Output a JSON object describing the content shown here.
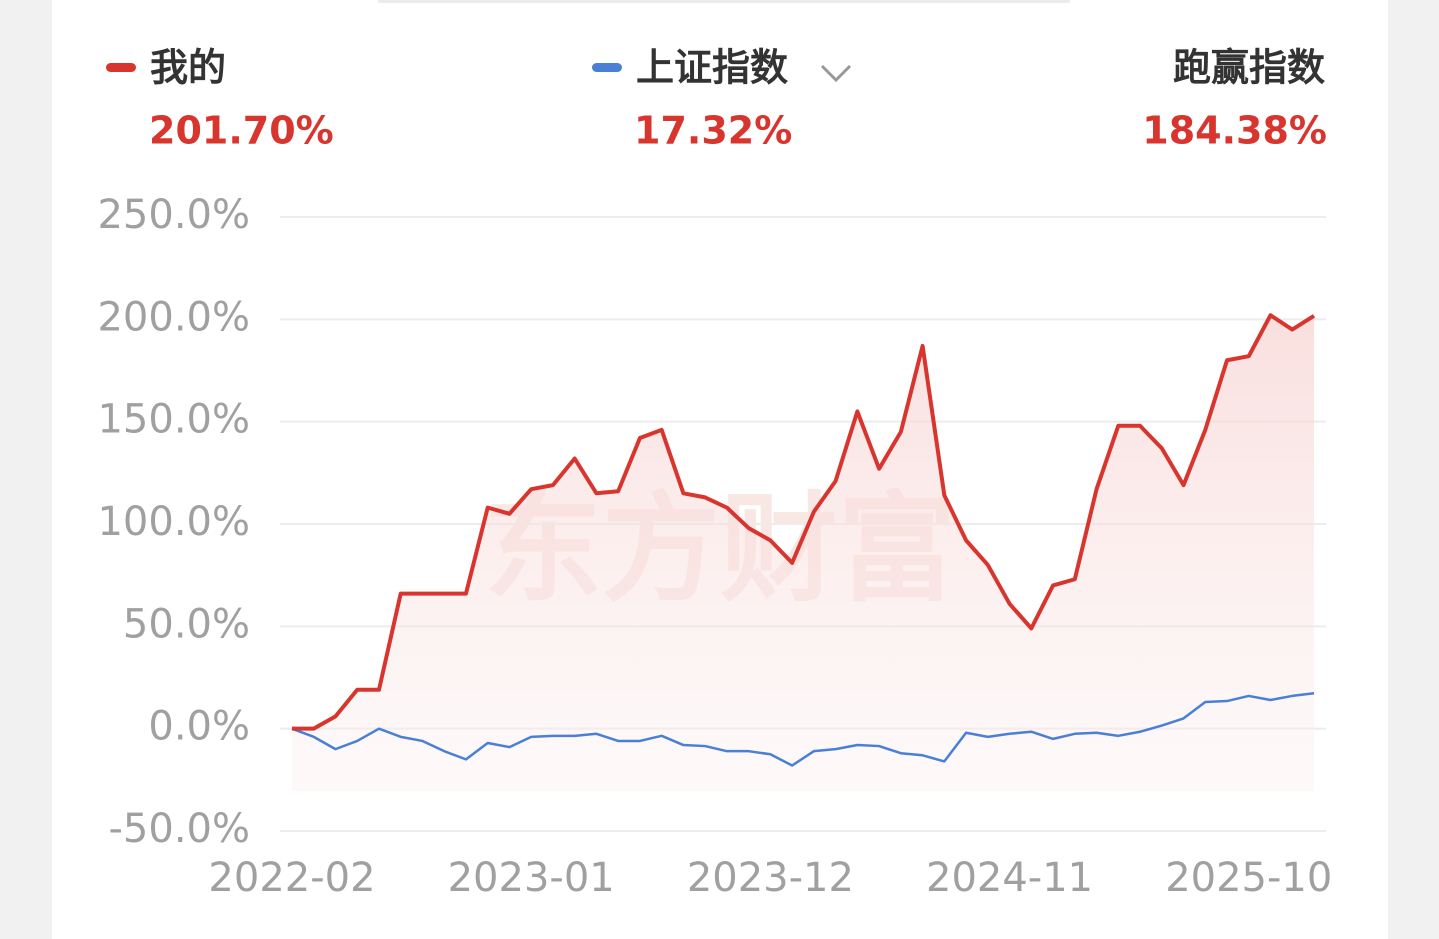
{
  "chart_data": {
    "type": "line",
    "watermark": "东方财富",
    "categories": [
      "2022-02",
      null,
      null,
      null,
      null,
      null,
      null,
      null,
      null,
      null,
      null,
      "2023-01",
      null,
      null,
      null,
      null,
      null,
      null,
      null,
      null,
      null,
      null,
      "2023-12",
      null,
      null,
      null,
      null,
      null,
      null,
      null,
      null,
      null,
      null,
      "2024-11",
      null,
      null,
      null,
      null,
      null,
      null,
      null,
      null,
      null,
      null,
      "2025-10",
      null,
      null,
      null
    ],
    "series": [
      {
        "name": "我的",
        "color": "#d9352f",
        "return_label": "201.70%",
        "values": [
          0,
          0,
          6,
          19,
          19,
          66,
          66,
          66,
          66,
          108,
          105,
          117,
          119,
          132,
          115,
          116,
          142,
          146,
          115,
          113,
          108,
          98,
          92,
          81,
          106,
          121,
          155,
          127,
          145,
          187,
          114,
          92,
          80,
          61,
          49,
          70,
          73,
          117,
          148,
          148,
          137,
          119,
          146,
          180,
          182,
          202,
          195,
          201.7
        ]
      },
      {
        "name": "上证指数",
        "color": "#4a7fd6",
        "return_label": "17.32%",
        "values": [
          0,
          -4,
          -10,
          -6,
          0,
          -4,
          -6,
          -11,
          -15,
          -7,
          -9,
          -4,
          -3.5,
          -3.5,
          -2.5,
          -6,
          -6,
          -3.5,
          -8,
          -8.5,
          -11,
          -11,
          -12.5,
          -18,
          -11,
          -10,
          -8,
          -8.5,
          -12,
          -13,
          -16,
          -2,
          -4,
          -2.5,
          -1.5,
          -5,
          -2.5,
          -2,
          -3.5,
          -1.5,
          1.5,
          5,
          13,
          13.5,
          16,
          14,
          16,
          17.32
        ]
      }
    ],
    "excess": {
      "name": "跑赢指数",
      "return_label": "184.38%"
    },
    "ylim": [
      -50,
      250
    ],
    "yticks": [
      {
        "value": -50,
        "label": "-50.0%"
      },
      {
        "value": 0,
        "label": "0.0%"
      },
      {
        "value": 50,
        "label": "50.0%"
      },
      {
        "value": 100,
        "label": "100.0%"
      },
      {
        "value": 150,
        "label": "150.0%"
      },
      {
        "value": 200,
        "label": "200.0%"
      },
      {
        "value": 250,
        "label": "250.0%"
      }
    ],
    "grid": true
  }
}
